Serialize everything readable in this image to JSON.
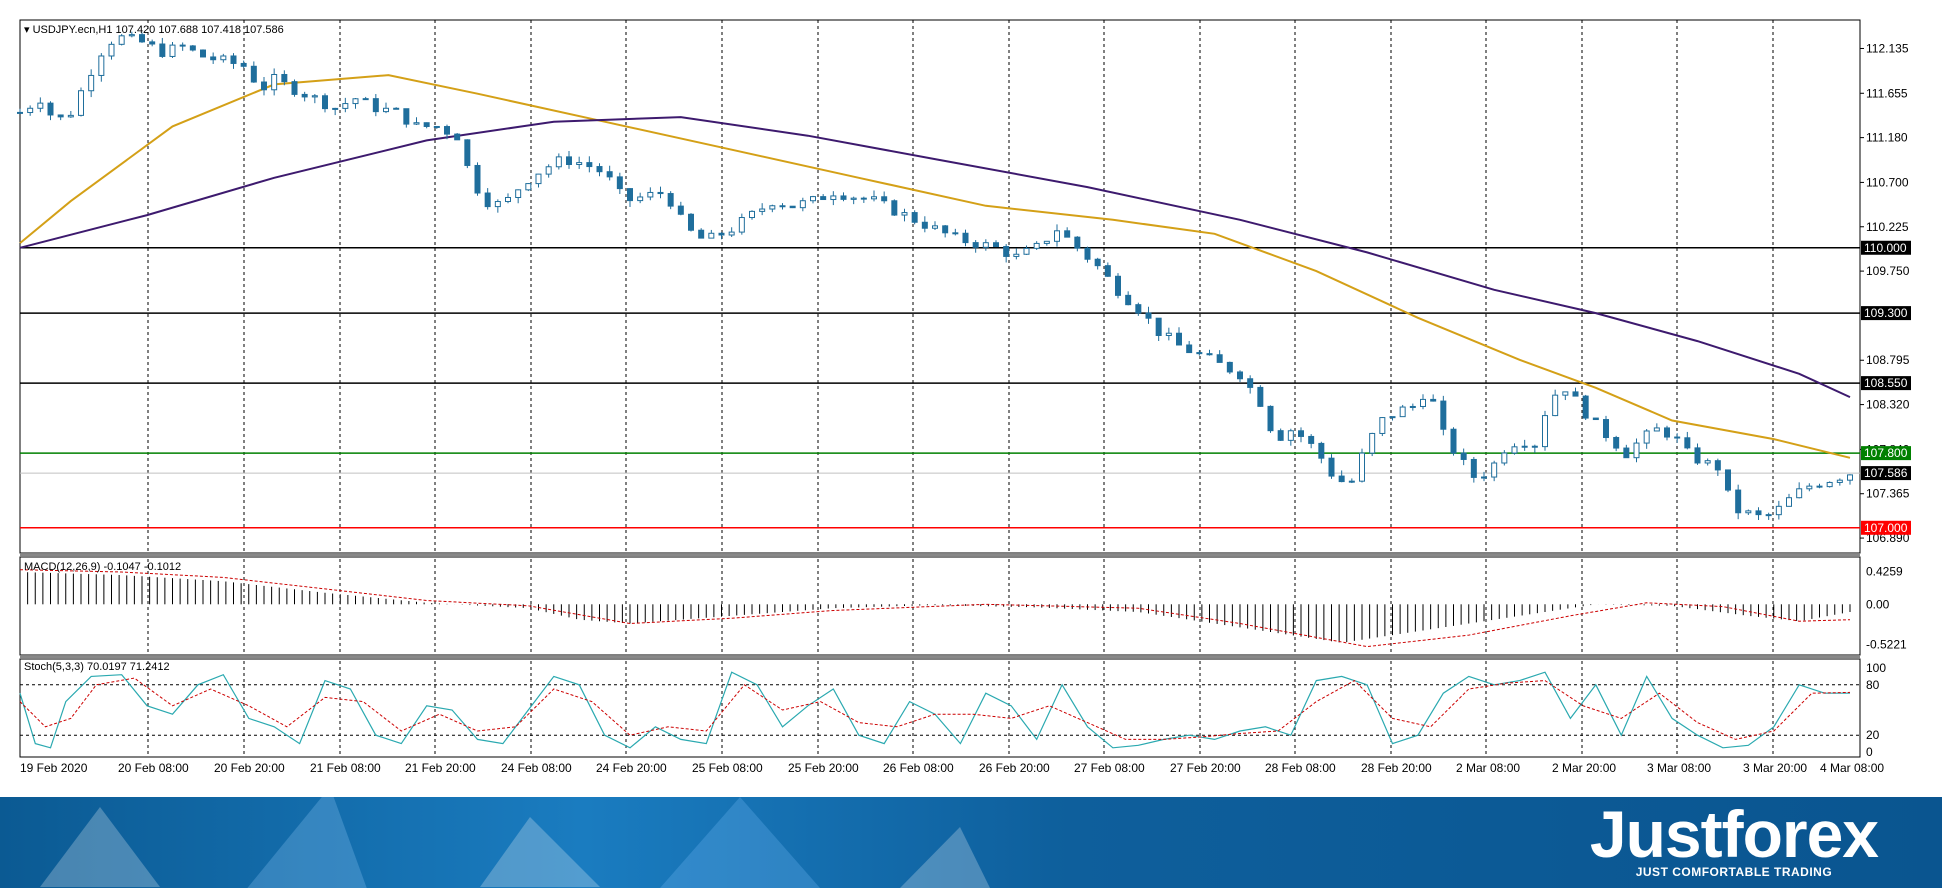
{
  "chart_data": {
    "type": "candlestick",
    "symbol_header": "USDJPY.ecn,H1",
    "ohlc_header": "107.420 107.688 107.418 107.586",
    "price_ticks": [
      "112.135",
      "111.655",
      "111.180",
      "110.700",
      "110.225",
      "109.750",
      "108.795",
      "108.320",
      "107.840",
      "107.365",
      "106.890"
    ],
    "ylim": [
      106.73,
      112.44
    ],
    "levels": [
      {
        "label": "110.000",
        "value": 110.0,
        "color": "#000000"
      },
      {
        "label": "109.300",
        "value": 109.3,
        "color": "#000000"
      },
      {
        "label": "108.550",
        "value": 108.55,
        "color": "#000000"
      },
      {
        "label": "107.800",
        "value": 107.8,
        "color": "#008000"
      },
      {
        "label": "107.000",
        "value": 107.0,
        "color": "#ff0000"
      }
    ],
    "current_price": {
      "label": "107.586",
      "value": 107.586
    },
    "x_labels": [
      "19 Feb 2020",
      "20 Feb 08:00",
      "20 Feb 20:00",
      "21 Feb 08:00",
      "21 Feb 20:00",
      "24 Feb 08:00",
      "24 Feb 20:00",
      "25 Feb 08:00",
      "25 Feb 20:00",
      "26 Feb 08:00",
      "26 Feb 20:00",
      "27 Feb 08:00",
      "27 Feb 20:00",
      "28 Feb 08:00",
      "28 Feb 20:00",
      "2 Mar 08:00",
      "2 Mar 20:00",
      "3 Mar 08:00",
      "3 Mar 20:00",
      "4 Mar 08:00"
    ],
    "close_path": [
      [
        0,
        111.45
      ],
      [
        8,
        111.6
      ],
      [
        14,
        111.35
      ],
      [
        20,
        111.45
      ],
      [
        28,
        111.9
      ],
      [
        34,
        112.2
      ],
      [
        40,
        112.25
      ],
      [
        48,
        112.2
      ],
      [
        56,
        112.1
      ],
      [
        64,
        112.15
      ],
      [
        72,
        112.05
      ],
      [
        80,
        112.0
      ],
      [
        88,
        111.95
      ],
      [
        95,
        111.7
      ],
      [
        100,
        111.8
      ],
      [
        108,
        111.7
      ],
      [
        116,
        111.6
      ],
      [
        124,
        111.5
      ],
      [
        132,
        111.6
      ],
      [
        140,
        111.5
      ],
      [
        148,
        111.45
      ],
      [
        156,
        111.3
      ],
      [
        164,
        111.3
      ],
      [
        172,
        111.2
      ],
      [
        178,
        110.7
      ],
      [
        184,
        110.5
      ],
      [
        190,
        110.45
      ],
      [
        198,
        110.7
      ],
      [
        206,
        110.85
      ],
      [
        214,
        110.95
      ],
      [
        222,
        110.9
      ],
      [
        230,
        110.8
      ],
      [
        238,
        110.5
      ],
      [
        246,
        110.55
      ],
      [
        254,
        110.6
      ],
      [
        260,
        110.3
      ],
      [
        266,
        110.1
      ],
      [
        272,
        110.1
      ],
      [
        280,
        110.2
      ],
      [
        288,
        110.35
      ],
      [
        296,
        110.5
      ],
      [
        304,
        110.45
      ],
      [
        312,
        110.5
      ],
      [
        320,
        110.6
      ],
      [
        328,
        110.55
      ],
      [
        336,
        110.5
      ],
      [
        344,
        110.4
      ],
      [
        352,
        110.3
      ],
      [
        360,
        110.2
      ],
      [
        368,
        110.1
      ],
      [
        376,
        110.05
      ],
      [
        384,
        110.0
      ],
      [
        392,
        109.9
      ],
      [
        400,
        110.0
      ],
      [
        408,
        110.2
      ],
      [
        416,
        110.0
      ],
      [
        424,
        109.8
      ],
      [
        432,
        109.55
      ],
      [
        440,
        109.35
      ],
      [
        448,
        109.1
      ],
      [
        456,
        108.95
      ],
      [
        464,
        108.85
      ],
      [
        472,
        108.75
      ],
      [
        480,
        108.65
      ],
      [
        488,
        108.35
      ],
      [
        494,
        107.95
      ],
      [
        500,
        108.05
      ],
      [
        506,
        107.95
      ],
      [
        512,
        107.75
      ],
      [
        518,
        107.5
      ],
      [
        524,
        107.5
      ],
      [
        530,
        107.9
      ],
      [
        536,
        108.15
      ],
      [
        542,
        108.25
      ],
      [
        548,
        108.3
      ],
      [
        554,
        108.5
      ],
      [
        560,
        108.0
      ],
      [
        566,
        107.75
      ],
      [
        572,
        107.55
      ],
      [
        578,
        107.6
      ],
      [
        584,
        107.85
      ],
      [
        590,
        107.95
      ],
      [
        596,
        107.9
      ],
      [
        602,
        108.4
      ],
      [
        608,
        108.5
      ],
      [
        614,
        108.3
      ],
      [
        620,
        108.1
      ],
      [
        626,
        107.95
      ],
      [
        632,
        107.8
      ],
      [
        638,
        107.95
      ],
      [
        644,
        108.05
      ],
      [
        650,
        108.0
      ],
      [
        656,
        107.8
      ],
      [
        662,
        107.7
      ],
      [
        668,
        107.65
      ],
      [
        674,
        107.2
      ],
      [
        680,
        107.15
      ],
      [
        686,
        107.1
      ],
      [
        692,
        107.2
      ],
      [
        698,
        107.35
      ],
      [
        704,
        107.45
      ],
      [
        710,
        107.5
      ],
      [
        716,
        107.55
      ],
      [
        720,
        107.586
      ]
    ],
    "series": [
      {
        "name": "MA short",
        "color": "#d4a017",
        "points": [
          [
            0,
            110.05
          ],
          [
            20,
            110.5
          ],
          [
            60,
            111.3
          ],
          [
            100,
            111.75
          ],
          [
            145,
            111.85
          ],
          [
            180,
            111.65
          ],
          [
            230,
            111.35
          ],
          [
            280,
            111.05
          ],
          [
            330,
            110.75
          ],
          [
            380,
            110.45
          ],
          [
            430,
            110.3
          ],
          [
            470,
            110.15
          ],
          [
            510,
            109.75
          ],
          [
            550,
            109.25
          ],
          [
            590,
            108.8
          ],
          [
            620,
            108.5
          ],
          [
            650,
            108.15
          ],
          [
            690,
            107.95
          ],
          [
            720,
            107.75
          ]
        ]
      },
      {
        "name": "MA long",
        "color": "#3d1a6e",
        "points": [
          [
            0,
            110.0
          ],
          [
            50,
            110.35
          ],
          [
            100,
            110.75
          ],
          [
            160,
            111.15
          ],
          [
            210,
            111.35
          ],
          [
            260,
            111.4
          ],
          [
            310,
            111.2
          ],
          [
            360,
            110.95
          ],
          [
            420,
            110.65
          ],
          [
            480,
            110.3
          ],
          [
            530,
            109.95
          ],
          [
            580,
            109.55
          ],
          [
            620,
            109.3
          ],
          [
            660,
            109.0
          ],
          [
            700,
            108.65
          ],
          [
            720,
            108.4
          ]
        ]
      }
    ],
    "macd": {
      "label": "MACD(12,26,9) -0.1047 -0.1012",
      "ticks": [
        "0.4259",
        "0.00",
        "-0.5221"
      ],
      "ylim": [
        -0.62,
        0.55
      ],
      "hist_path": [
        [
          0,
          0.42
        ],
        [
          40,
          0.38
        ],
        [
          80,
          0.3
        ],
        [
          120,
          0.15
        ],
        [
          160,
          0.02
        ],
        [
          200,
          -0.05
        ],
        [
          220,
          -0.2
        ],
        [
          240,
          -0.25
        ],
        [
          280,
          -0.15
        ],
        [
          320,
          -0.05
        ],
        [
          360,
          -0.01
        ],
        [
          400,
          -0.04
        ],
        [
          440,
          -0.1
        ],
        [
          480,
          -0.3
        ],
        [
          520,
          -0.5
        ],
        [
          560,
          -0.3
        ],
        [
          600,
          -0.1
        ],
        [
          620,
          0.0
        ],
        [
          650,
          -0.02
        ],
        [
          680,
          -0.15
        ],
        [
          700,
          -0.22
        ],
        [
          720,
          -0.1
        ]
      ],
      "signal_path": [
        [
          0,
          0.45
        ],
        [
          40,
          0.42
        ],
        [
          80,
          0.35
        ],
        [
          120,
          0.2
        ],
        [
          160,
          0.05
        ],
        [
          200,
          -0.02
        ],
        [
          240,
          -0.25
        ],
        [
          280,
          -0.18
        ],
        [
          320,
          -0.08
        ],
        [
          380,
          0.0
        ],
        [
          440,
          -0.05
        ],
        [
          480,
          -0.25
        ],
        [
          530,
          -0.55
        ],
        [
          570,
          -0.4
        ],
        [
          610,
          -0.15
        ],
        [
          640,
          0.02
        ],
        [
          670,
          -0.03
        ],
        [
          700,
          -0.22
        ],
        [
          720,
          -0.2
        ]
      ]
    },
    "stoch": {
      "label": "Stoch(5,3,3) 70.0197 71.2412",
      "ticks": [
        "100",
        "80",
        "20",
        "0"
      ],
      "levels": [
        80,
        20
      ],
      "main_path": [
        [
          0,
          70
        ],
        [
          6,
          10
        ],
        [
          12,
          5
        ],
        [
          18,
          60
        ],
        [
          28,
          90
        ],
        [
          40,
          92
        ],
        [
          50,
          55
        ],
        [
          60,
          45
        ],
        [
          70,
          80
        ],
        [
          80,
          92
        ],
        [
          90,
          40
        ],
        [
          100,
          30
        ],
        [
          110,
          10
        ],
        [
          120,
          85
        ],
        [
          130,
          75
        ],
        [
          140,
          20
        ],
        [
          150,
          10
        ],
        [
          160,
          55
        ],
        [
          170,
          50
        ],
        [
          180,
          15
        ],
        [
          190,
          10
        ],
        [
          200,
          50
        ],
        [
          210,
          90
        ],
        [
          220,
          80
        ],
        [
          230,
          20
        ],
        [
          240,
          5
        ],
        [
          250,
          30
        ],
        [
          260,
          15
        ],
        [
          270,
          10
        ],
        [
          280,
          95
        ],
        [
          290,
          80
        ],
        [
          300,
          30
        ],
        [
          310,
          55
        ],
        [
          320,
          75
        ],
        [
          330,
          20
        ],
        [
          340,
          10
        ],
        [
          350,
          60
        ],
        [
          360,
          45
        ],
        [
          370,
          10
        ],
        [
          380,
          70
        ],
        [
          390,
          55
        ],
        [
          400,
          15
        ],
        [
          410,
          80
        ],
        [
          420,
          30
        ],
        [
          430,
          5
        ],
        [
          440,
          8
        ],
        [
          450,
          15
        ],
        [
          460,
          20
        ],
        [
          470,
          15
        ],
        [
          480,
          25
        ],
        [
          490,
          30
        ],
        [
          500,
          20
        ],
        [
          510,
          85
        ],
        [
          520,
          90
        ],
        [
          530,
          80
        ],
        [
          540,
          10
        ],
        [
          550,
          20
        ],
        [
          560,
          70
        ],
        [
          570,
          90
        ],
        [
          580,
          80
        ],
        [
          590,
          85
        ],
        [
          600,
          95
        ],
        [
          610,
          40
        ],
        [
          620,
          80
        ],
        [
          630,
          20
        ],
        [
          640,
          90
        ],
        [
          650,
          40
        ],
        [
          660,
          20
        ],
        [
          670,
          5
        ],
        [
          680,
          8
        ],
        [
          690,
          30
        ],
        [
          700,
          80
        ],
        [
          710,
          70
        ],
        [
          720,
          70
        ]
      ],
      "signal_path": [
        [
          0,
          60
        ],
        [
          10,
          30
        ],
        [
          20,
          40
        ],
        [
          30,
          80
        ],
        [
          45,
          88
        ],
        [
          60,
          55
        ],
        [
          75,
          75
        ],
        [
          90,
          55
        ],
        [
          105,
          30
        ],
        [
          120,
          65
        ],
        [
          135,
          60
        ],
        [
          150,
          25
        ],
        [
          165,
          45
        ],
        [
          180,
          25
        ],
        [
          195,
          30
        ],
        [
          210,
          75
        ],
        [
          225,
          60
        ],
        [
          240,
          20
        ],
        [
          255,
          30
        ],
        [
          270,
          25
        ],
        [
          285,
          80
        ],
        [
          300,
          50
        ],
        [
          315,
          60
        ],
        [
          330,
          35
        ],
        [
          345,
          30
        ],
        [
          360,
          45
        ],
        [
          375,
          45
        ],
        [
          390,
          40
        ],
        [
          405,
          55
        ],
        [
          420,
          35
        ],
        [
          435,
          15
        ],
        [
          450,
          15
        ],
        [
          465,
          18
        ],
        [
          480,
          22
        ],
        [
          495,
          25
        ],
        [
          510,
          60
        ],
        [
          525,
          85
        ],
        [
          540,
          40
        ],
        [
          555,
          30
        ],
        [
          570,
          75
        ],
        [
          585,
          82
        ],
        [
          600,
          85
        ],
        [
          615,
          55
        ],
        [
          630,
          40
        ],
        [
          645,
          70
        ],
        [
          660,
          35
        ],
        [
          675,
          15
        ],
        [
          690,
          25
        ],
        [
          705,
          70
        ],
        [
          720,
          71
        ]
      ]
    }
  },
  "footer": {
    "brand": "Justforex",
    "tagline": "JUST COMFORTABLE TRADING"
  }
}
